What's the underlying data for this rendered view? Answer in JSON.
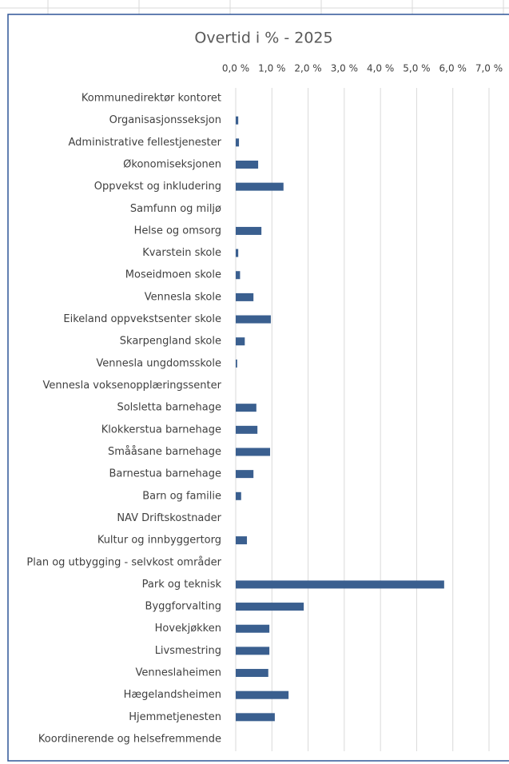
{
  "chart_data": {
    "type": "hbar",
    "title": "Overtid i % - 2025",
    "categories": [
      "Kommunedirektør kontoret",
      "Organisasjonsseksjon",
      "Administrative fellestjenester",
      "Økonomiseksjonen",
      "Oppvekst og inkludering",
      "Samfunn og miljø",
      "Helse og omsorg",
      "Kvarstein skole",
      "Moseidmoen skole",
      "Vennesla skole",
      "Eikeland oppvekstsenter skole",
      "Skarpengland skole",
      "Vennesla ungdomsskole",
      "Vennesla voksenopplæringssenter",
      "Solsletta barnehage",
      "Klokkerstua barnehage",
      "Smååsane barnehage",
      "Barnestua barnehage",
      "Barn og familie",
      "NAV Driftskostnader",
      "Kultur og innbyggertorg",
      "Plan og utbygging - selvkost områder",
      "Park og teknisk",
      "Byggforvalting",
      "Hovekjøkken",
      "Livsmestring",
      "Venneslaheimen",
      "Hægelandsheimen",
      "Hjemmetjenesten",
      "Koordinerende og helsefremmende"
    ],
    "values": [
      0,
      0.07,
      0.09,
      0.62,
      1.32,
      0,
      0.71,
      0.07,
      0.12,
      0.49,
      0.97,
      0.25,
      0.04,
      0,
      0.57,
      0.6,
      0.95,
      0.49,
      0.15,
      0,
      0.31,
      0,
      5.76,
      1.88,
      0.93,
      0.93,
      0.9,
      1.46,
      1.08,
      0
    ],
    "color": "#3a5f8f",
    "xlim": [
      0,
      7
    ],
    "xticks": [
      {
        "value": 0,
        "label": "0,0 %"
      },
      {
        "value": 1,
        "label": "1,0 %"
      },
      {
        "value": 2,
        "label": "2,0 %"
      },
      {
        "value": 3,
        "label": "3,0 %"
      },
      {
        "value": 4,
        "label": "4,0 %"
      },
      {
        "value": 5,
        "label": "5,0 %"
      },
      {
        "value": 6,
        "label": "6,0 %"
      },
      {
        "value": 7,
        "label": "7,0 %"
      }
    ],
    "grid": true
  }
}
